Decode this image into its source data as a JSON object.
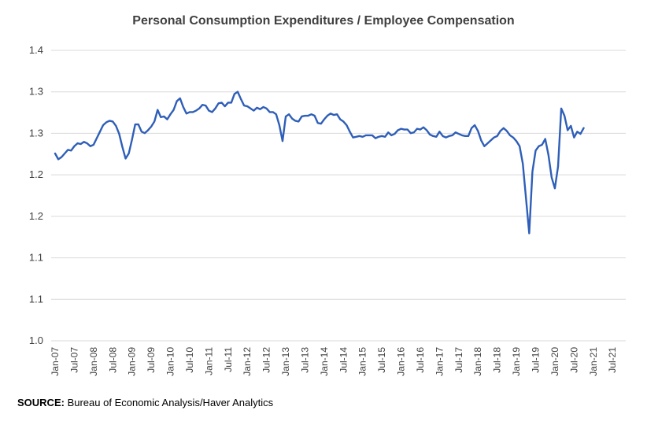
{
  "chart_data": {
    "type": "line",
    "title": "Personal Consumption Expenditures / Employee Compensation",
    "xlabel": "",
    "ylabel": "",
    "ylim": [
      1.0,
      1.4
    ],
    "y_tick_labels": [
      "1.4",
      "1.3",
      "1.3",
      "1.2",
      "1.2",
      "1.1",
      "1.1",
      "1.0"
    ],
    "x_tick_labels": [
      "Jan-07",
      "Jul-07",
      "Jan-08",
      "Jul-08",
      "Jan-09",
      "Jul-09",
      "Jan-10",
      "Jul-10",
      "Jan-11",
      "Jul-11",
      "Jan-12",
      "Jul-12",
      "Jan-13",
      "Jul-13",
      "Jan-14",
      "Jul-14",
      "Jan-15",
      "Jul-15",
      "Jan-16",
      "Jul-16",
      "Jan-17",
      "Jul-17",
      "Jan-18",
      "Jul-18",
      "Jan-19",
      "Jul-19",
      "Jan-20",
      "Jul-20",
      "Jan-21",
      "Jul-21"
    ],
    "grid": true,
    "series": [
      {
        "name": "PCE / Employee Compensation",
        "color": "#2e5eb8",
        "start": "Jan-07",
        "frequency": "monthly",
        "values": [
          1.258,
          1.25,
          1.253,
          1.258,
          1.263,
          1.262,
          1.268,
          1.272,
          1.271,
          1.274,
          1.272,
          1.268,
          1.27,
          1.279,
          1.288,
          1.297,
          1.301,
          1.303,
          1.302,
          1.296,
          1.285,
          1.267,
          1.251,
          1.258,
          1.277,
          1.298,
          1.298,
          1.288,
          1.286,
          1.29,
          1.295,
          1.302,
          1.318,
          1.308,
          1.309,
          1.305,
          1.312,
          1.318,
          1.33,
          1.334,
          1.322,
          1.313,
          1.315,
          1.315,
          1.317,
          1.32,
          1.325,
          1.324,
          1.317,
          1.315,
          1.32,
          1.327,
          1.328,
          1.323,
          1.328,
          1.328,
          1.34,
          1.343,
          1.333,
          1.324,
          1.323,
          1.32,
          1.317,
          1.321,
          1.319,
          1.322,
          1.32,
          1.315,
          1.315,
          1.312,
          1.297,
          1.275,
          1.309,
          1.312,
          1.306,
          1.303,
          1.302,
          1.309,
          1.31,
          1.31,
          1.312,
          1.31,
          1.3,
          1.299,
          1.305,
          1.31,
          1.313,
          1.311,
          1.312,
          1.305,
          1.302,
          1.297,
          1.288,
          1.28,
          1.281,
          1.282,
          1.281,
          1.283,
          1.283,
          1.283,
          1.279,
          1.281,
          1.282,
          1.281,
          1.287,
          1.283,
          1.285,
          1.29,
          1.292,
          1.291,
          1.291,
          1.286,
          1.287,
          1.292,
          1.291,
          1.294,
          1.29,
          1.284,
          1.282,
          1.281,
          1.288,
          1.282,
          1.28,
          1.282,
          1.283,
          1.287,
          1.285,
          1.283,
          1.282,
          1.282,
          1.293,
          1.297,
          1.289,
          1.276,
          1.268,
          1.272,
          1.276,
          1.28,
          1.282,
          1.289,
          1.293,
          1.289,
          1.283,
          1.28,
          1.275,
          1.268,
          1.244,
          1.196,
          1.148,
          1.233,
          1.262,
          1.268,
          1.27,
          1.278,
          1.256,
          1.225,
          1.21,
          1.24,
          1.32,
          1.31,
          1.29,
          1.296,
          1.28,
          1.288,
          1.285,
          1.293
        ]
      }
    ]
  },
  "source": {
    "label": "SOURCE:",
    "text": "Bureau of Economic Analysis/Haver Analytics"
  }
}
